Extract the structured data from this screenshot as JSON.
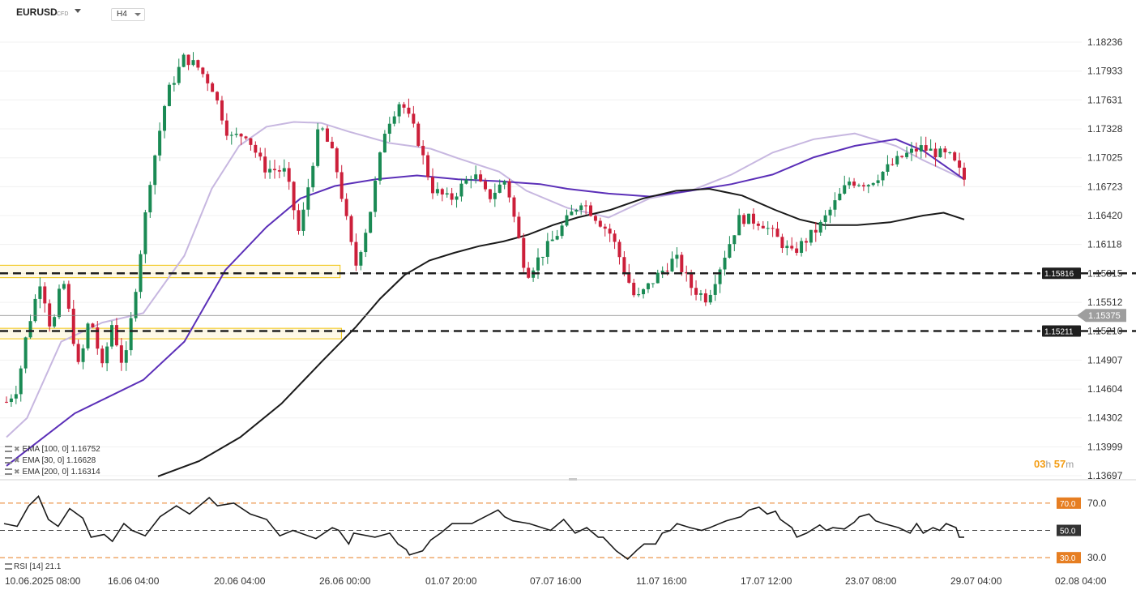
{
  "header": {
    "symbol": "EURUSD",
    "instrument_type": "CFD",
    "timeframe": "H4"
  },
  "countdown": {
    "hours": "03",
    "h_unit": "h",
    "minutes": "57",
    "m_unit": "m"
  },
  "indicators": [
    {
      "label": "EMA [100,  0] 1.16752",
      "color": "#5b2fb8"
    },
    {
      "label": "EMA [30,  0] 1.16628",
      "color": "#c7b7e0"
    },
    {
      "label": "EMA [200,  0] 1.16314",
      "color": "#1a1a1a"
    }
  ],
  "rsi_label": "RSI [14]  21.1",
  "colors": {
    "up": "#1a8a54",
    "down": "#cc1f3a",
    "zone": "#f1c40f",
    "rsi_level": "#e67e22"
  },
  "chart_data": {
    "type": "candlestick",
    "title": "EURUSD CFD H4",
    "y_ticks": [
      1.18236,
      1.17933,
      1.17631,
      1.17328,
      1.17025,
      1.16723,
      1.1642,
      1.16118,
      1.15815,
      1.15512,
      1.1521,
      1.14907,
      1.14604,
      1.14302,
      1.13999,
      1.13697
    ],
    "y_tick_labels": [
      "1.18236",
      "1.17933",
      "1.17631",
      "1.17328",
      "1.17025",
      "1.16723",
      "1.16420",
      "1.16118",
      "1.15815",
      "1.15512",
      "1.15210",
      "1.14907",
      "1.14604",
      "1.14302",
      "1.13999",
      "1.13697"
    ],
    "ylim": [
      1.13697,
      1.18236
    ],
    "x_labels": [
      "10.06.2025  08:00",
      "16.06  04:00",
      "20.06  04:00",
      "26.06  00:00",
      "01.07  20:00",
      "07.07  16:00",
      "11.07  16:00",
      "17.07  12:00",
      "23.07  08:00",
      "29.07  04:00",
      "02.08  04:00"
    ],
    "current_price": 1.15375,
    "current_price_label": "1.15375",
    "horizontal_levels": [
      {
        "value": 1.15816,
        "label": "1.15816"
      },
      {
        "value": 1.15211,
        "label": "1.15211"
      }
    ],
    "zones": [
      {
        "from": 1.1577,
        "to": 1.159,
        "start_candle": 8,
        "end_candle": 232
      },
      {
        "from": 1.1513,
        "to": 1.1524,
        "start_candle": 10,
        "end_candle": 233
      }
    ],
    "price_path": [
      [
        0,
        1.1447
      ],
      [
        8,
        1.1462
      ],
      [
        15,
        1.1521
      ],
      [
        25,
        1.1576
      ],
      [
        33,
        1.1519
      ],
      [
        41,
        1.1578
      ],
      [
        53,
        1.148
      ],
      [
        61,
        1.1538
      ],
      [
        70,
        1.1482
      ],
      [
        77,
        1.1528
      ],
      [
        86,
        1.148
      ],
      [
        95,
        1.1573
      ],
      [
        105,
        1.168
      ],
      [
        117,
        1.1768
      ],
      [
        130,
        1.1808
      ],
      [
        140,
        1.1797
      ],
      [
        150,
        1.1778
      ],
      [
        163,
        1.1723
      ],
      [
        175,
        1.1728
      ],
      [
        188,
        1.1692
      ],
      [
        204,
        1.1688
      ],
      [
        214,
        1.1622
      ],
      [
        229,
        1.1738
      ],
      [
        240,
        1.17
      ],
      [
        255,
        1.1588
      ],
      [
        265,
        1.164
      ],
      [
        277,
        1.1735
      ],
      [
        288,
        1.1763
      ],
      [
        300,
        1.1725
      ],
      [
        311,
        1.167
      ],
      [
        324,
        1.1658
      ],
      [
        341,
        1.1687
      ],
      [
        352,
        1.166
      ],
      [
        365,
        1.168
      ],
      [
        380,
        1.158
      ],
      [
        400,
        1.1618
      ],
      [
        420,
        1.1658
      ],
      [
        442,
        1.1622
      ],
      [
        460,
        1.1553
      ],
      [
        475,
        1.1578
      ],
      [
        489,
        1.1598
      ],
      [
        501,
        1.1566
      ],
      [
        512,
        1.1555
      ],
      [
        536,
        1.164
      ],
      [
        552,
        1.1635
      ],
      [
        574,
        1.1602
      ],
      [
        594,
        1.163
      ],
      [
        616,
        1.1678
      ],
      [
        630,
        1.1676
      ],
      [
        655,
        1.1704
      ],
      [
        668,
        1.1713
      ],
      [
        690,
        1.1703
      ],
      [
        700,
        1.168
      ]
    ],
    "ema100_path": [
      [
        0,
        1.138
      ],
      [
        50,
        1.1435
      ],
      [
        100,
        1.147
      ],
      [
        130,
        1.151
      ],
      [
        160,
        1.1585
      ],
      [
        190,
        1.163
      ],
      [
        215,
        1.166
      ],
      [
        240,
        1.1673
      ],
      [
        270,
        1.168
      ],
      [
        300,
        1.1684
      ],
      [
        330,
        1.168
      ],
      [
        360,
        1.1678
      ],
      [
        390,
        1.1675
      ],
      [
        410,
        1.167
      ],
      [
        440,
        1.1665
      ],
      [
        470,
        1.1662
      ],
      [
        500,
        1.1668
      ],
      [
        530,
        1.1675
      ],
      [
        560,
        1.1685
      ],
      [
        590,
        1.1703
      ],
      [
        620,
        1.1715
      ],
      [
        650,
        1.1722
      ],
      [
        670,
        1.171
      ],
      [
        700,
        1.168
      ]
    ],
    "ema100_value": 1.16752,
    "ema30_path": [
      [
        0,
        1.141
      ],
      [
        15,
        1.143
      ],
      [
        40,
        1.151
      ],
      [
        70,
        1.153
      ],
      [
        100,
        1.154
      ],
      [
        130,
        1.16
      ],
      [
        150,
        1.167
      ],
      [
        170,
        1.1715
      ],
      [
        190,
        1.1735
      ],
      [
        210,
        1.174
      ],
      [
        230,
        1.1739
      ],
      [
        250,
        1.173
      ],
      [
        280,
        1.1718
      ],
      [
        310,
        1.1712
      ],
      [
        330,
        1.1702
      ],
      [
        360,
        1.1688
      ],
      [
        380,
        1.1668
      ],
      [
        410,
        1.165
      ],
      [
        440,
        1.164
      ],
      [
        470,
        1.166
      ],
      [
        500,
        1.1668
      ],
      [
        530,
        1.1685
      ],
      [
        560,
        1.1708
      ],
      [
        590,
        1.1722
      ],
      [
        620,
        1.1728
      ],
      [
        650,
        1.1715
      ],
      [
        670,
        1.17
      ],
      [
        700,
        1.168
      ]
    ],
    "ema30_value": 1.16628,
    "ema200_path": [
      [
        210,
        1.1369
      ],
      [
        260,
        1.1385
      ],
      [
        310,
        1.141
      ],
      [
        360,
        1.1445
      ],
      [
        410,
        1.149
      ],
      [
        450,
        1.1525
      ],
      [
        480,
        1.1555
      ],
      [
        510,
        1.158
      ],
      [
        540,
        1.1595
      ],
      [
        570,
        1.1603
      ],
      [
        600,
        1.161
      ],
      [
        630,
        1.1615
      ],
      [
        660,
        1.1622
      ],
      [
        690,
        1.1632
      ],
      [
        720,
        1.164
      ],
      [
        760,
        1.1648
      ],
      [
        800,
        1.166
      ],
      [
        840,
        1.1668
      ],
      [
        880,
        1.167
      ],
      [
        920,
        1.1663
      ],
      [
        960,
        1.1648
      ],
      [
        990,
        1.1638
      ],
      [
        1020,
        1.1632
      ],
      [
        1060,
        1.1632
      ],
      [
        1100,
        1.1635
      ],
      [
        1140,
        1.1642
      ],
      [
        1165,
        1.1645
      ],
      [
        1190,
        1.1638
      ]
    ],
    "ema200_value": 1.16314,
    "rsi": {
      "period": 14,
      "value": 21.1,
      "levels": [
        70.0,
        50.0,
        30.0
      ],
      "level_labels": [
        "70.0",
        "50.0",
        "30.0"
      ],
      "axis_labels": [
        "70.0",
        "30.0"
      ],
      "ylim": [
        20,
        80
      ],
      "path": [
        [
          0,
          55
        ],
        [
          8,
          53
        ],
        [
          15,
          68
        ],
        [
          21,
          75
        ],
        [
          27,
          58
        ],
        [
          33,
          53
        ],
        [
          40,
          66
        ],
        [
          48,
          59
        ],
        [
          53,
          45
        ],
        [
          61,
          47
        ],
        [
          66,
          42
        ],
        [
          73,
          55
        ],
        [
          78,
          50
        ],
        [
          86,
          46
        ],
        [
          95,
          60
        ],
        [
          105,
          68
        ],
        [
          113,
          62
        ],
        [
          125,
          74
        ],
        [
          130,
          68
        ],
        [
          140,
          70
        ],
        [
          150,
          62
        ],
        [
          160,
          58
        ],
        [
          168,
          46
        ],
        [
          176,
          50
        ],
        [
          190,
          44
        ],
        [
          200,
          52
        ],
        [
          204,
          50
        ],
        [
          210,
          40
        ],
        [
          213,
          48
        ],
        [
          226,
          45
        ],
        [
          235,
          48
        ],
        [
          240,
          40
        ],
        [
          245,
          36
        ],
        [
          247,
          32
        ],
        [
          255,
          35
        ],
        [
          260,
          43
        ],
        [
          266,
          48
        ],
        [
          273,
          55
        ],
        [
          285,
          55
        ],
        [
          293,
          60
        ],
        [
          301,
          65
        ],
        [
          305,
          60
        ],
        [
          310,
          57
        ],
        [
          320,
          55
        ],
        [
          333,
          50
        ],
        [
          341,
          58
        ],
        [
          348,
          48
        ],
        [
          355,
          52
        ],
        [
          362,
          45
        ],
        [
          365,
          45
        ],
        [
          373,
          35
        ],
        [
          380,
          29
        ],
        [
          386,
          36
        ],
        [
          390,
          40
        ],
        [
          397,
          40
        ],
        [
          401,
          48
        ],
        [
          406,
          50
        ],
        [
          410,
          55
        ],
        [
          418,
          52
        ],
        [
          425,
          50
        ],
        [
          430,
          52
        ],
        [
          440,
          57
        ],
        [
          449,
          60
        ],
        [
          454,
          65
        ],
        [
          460,
          67
        ],
        [
          465,
          62
        ],
        [
          470,
          64
        ],
        [
          473,
          58
        ],
        [
          480,
          52
        ],
        [
          483,
          45
        ],
        [
          489,
          48
        ],
        [
          497,
          54
        ],
        [
          501,
          50
        ],
        [
          505,
          52
        ],
        [
          512,
          51
        ],
        [
          518,
          56
        ],
        [
          521,
          60
        ],
        [
          527,
          62
        ],
        [
          531,
          57
        ],
        [
          536,
          55
        ],
        [
          545,
          52
        ],
        [
          552,
          48
        ],
        [
          556,
          55
        ],
        [
          560,
          48
        ],
        [
          566,
          52
        ],
        [
          570,
          50
        ],
        [
          574,
          55
        ],
        [
          580,
          52
        ],
        [
          582,
          45
        ],
        [
          585,
          45
        ]
      ]
    }
  }
}
